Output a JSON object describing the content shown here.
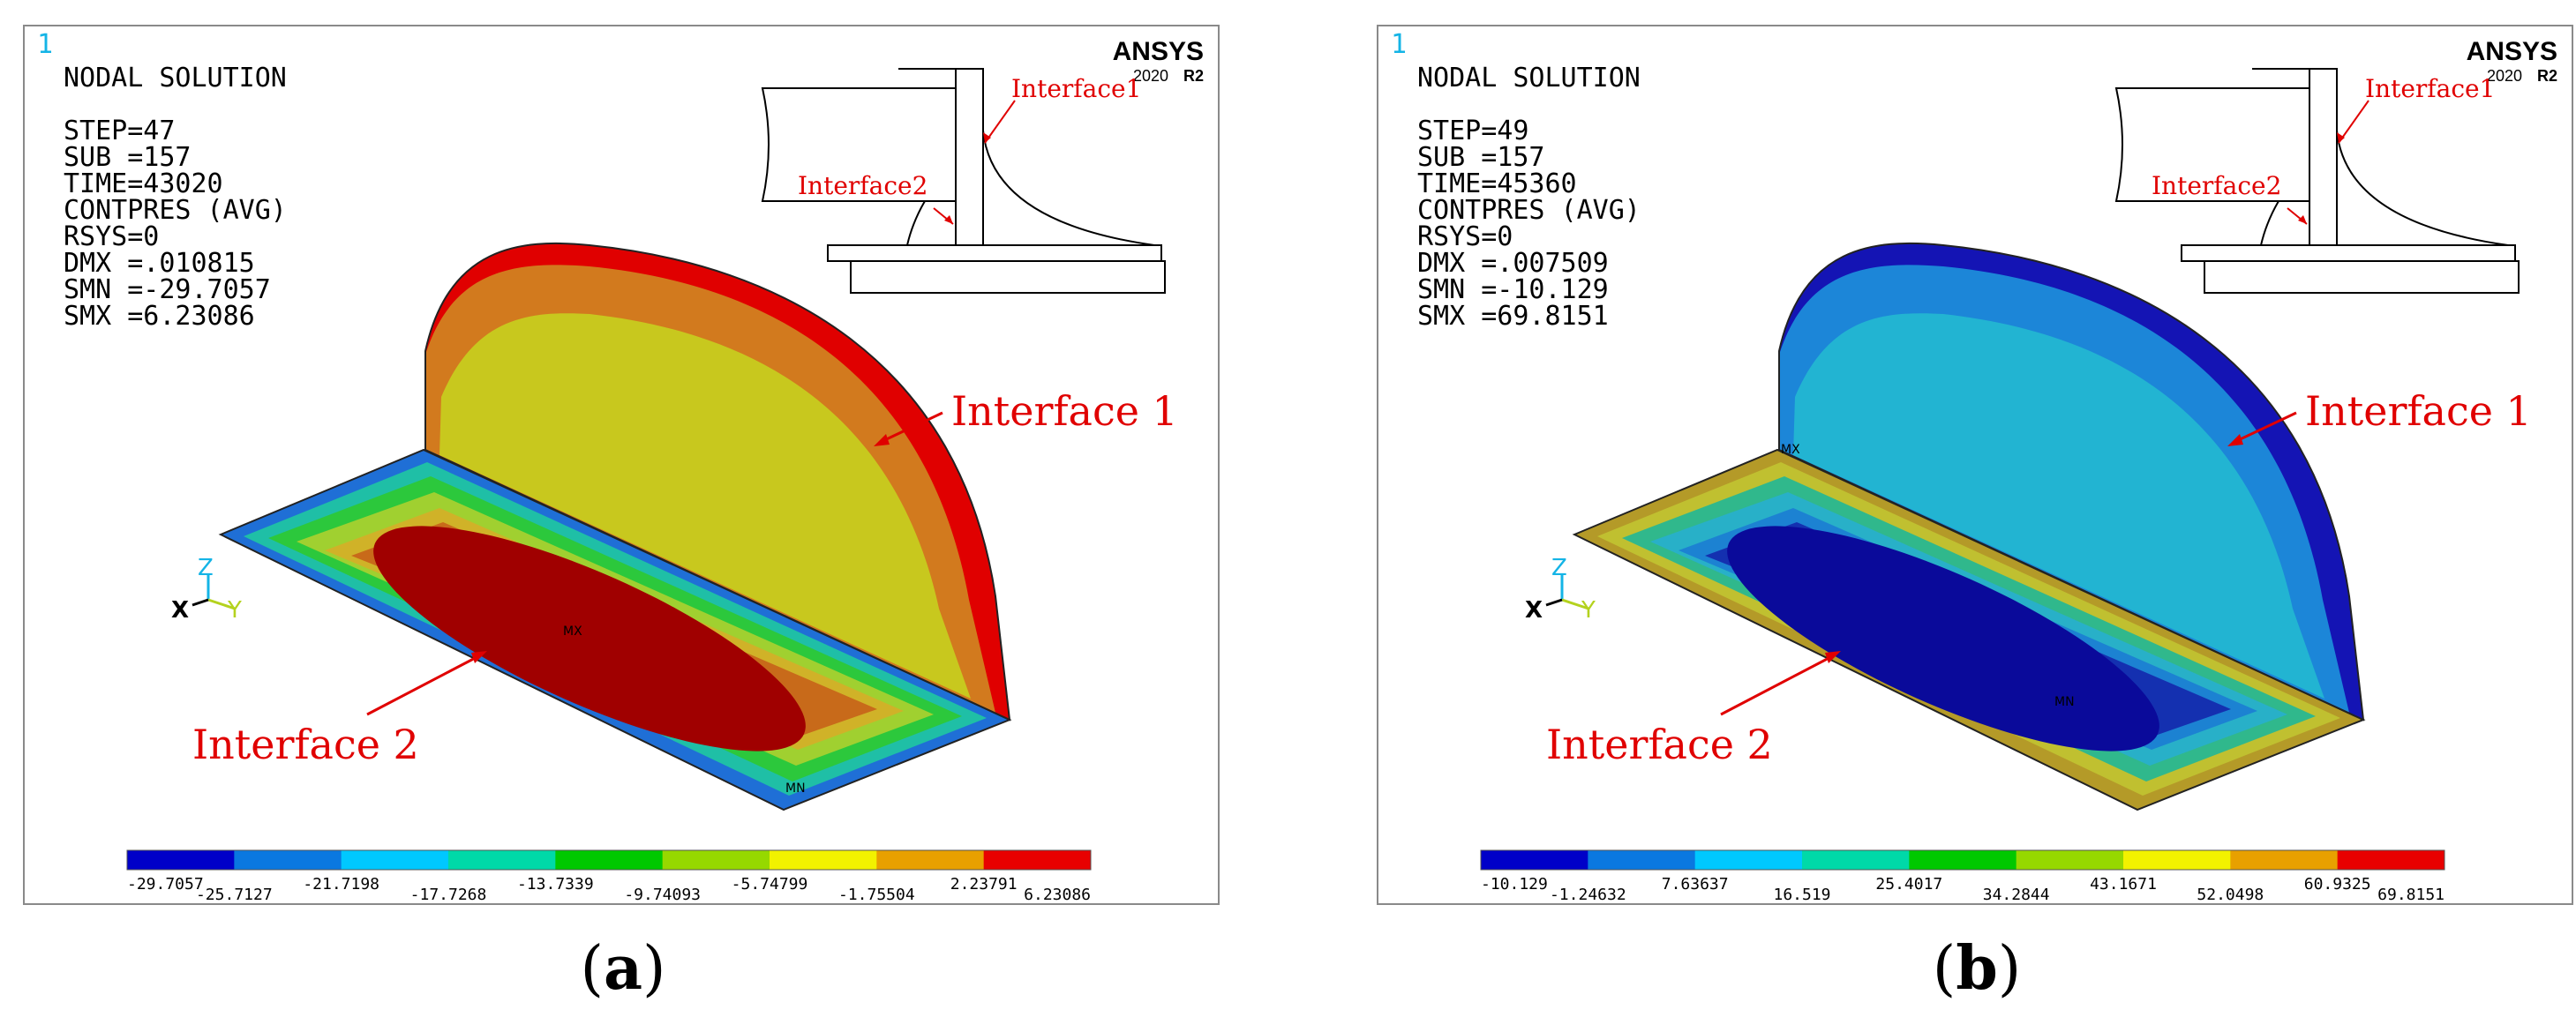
{
  "panels": [
    {
      "id": "a",
      "window_number": "1",
      "brand": "ANSYS",
      "version": "2020",
      "release": "R2",
      "header": "NODAL SOLUTION",
      "info": [
        "STEP=47",
        "SUB =157",
        "TIME=43020",
        "CONTPRES (AVG)",
        "RSYS=0",
        "DMX =.010815",
        "SMN =-29.7057",
        "SMX =6.23086"
      ],
      "schematic_labels": {
        "interface1": "Interface1",
        "interface2": "Interface2"
      },
      "labels": {
        "interface1": "Interface 1",
        "interface2": "Interface 2"
      },
      "axis": {
        "x": "X",
        "y": "Y",
        "z": "Z"
      },
      "markers": {
        "mn": "MN",
        "mx": "MX"
      },
      "legend_values": [
        "-29.7057",
        "-25.7127",
        "-21.7198",
        "-17.7268",
        "-13.7339",
        "-9.74093",
        "-5.74799",
        "-1.75504",
        "2.23791",
        "6.23086"
      ],
      "legend_colors": [
        "#0000c8",
        "#0a78e0",
        "#00c8ff",
        "#00d9a8",
        "#00c800",
        "#96d800",
        "#f2f200",
        "#e8a000",
        "#e80000"
      ],
      "colors": {
        "upper_outer": "#e00000",
        "upper_mid": "#d27a1e",
        "upper_inner": "#c8c81e",
        "lower_rim": "#1f6fd6",
        "lower_inner": "#a00000"
      },
      "caption": "a"
    },
    {
      "id": "b",
      "window_number": "1",
      "brand": "ANSYS",
      "version": "2020",
      "release": "R2",
      "header": "NODAL SOLUTION",
      "info": [
        "STEP=49",
        "SUB =157",
        "TIME=45360",
        "CONTPRES (AVG)",
        "RSYS=0",
        "DMX =.007509",
        "SMN =-10.129",
        "SMX =69.8151"
      ],
      "schematic_labels": {
        "interface1": "Interface1",
        "interface2": "Interface2"
      },
      "labels": {
        "interface1": "Interface 1",
        "interface2": "Interface 2"
      },
      "axis": {
        "x": "X",
        "y": "Y",
        "z": "Z"
      },
      "markers": {
        "mn": "MN",
        "mx": "MX"
      },
      "legend_values": [
        "-10.129",
        "-1.24632",
        "7.63637",
        "16.519",
        "25.4017",
        "34.2844",
        "43.1671",
        "52.0498",
        "60.9325",
        "69.8151"
      ],
      "legend_colors": [
        "#0000c8",
        "#0a78e0",
        "#00c8ff",
        "#00d9a8",
        "#00c800",
        "#96d800",
        "#f2f200",
        "#e8a000",
        "#e80000"
      ],
      "colors": {
        "upper_outer": "#1414b4",
        "upper_mid": "#1c86d8",
        "upper_inner": "#22b4d2",
        "lower_rim": "#b49a28",
        "lower_inner": "#0a0a9a"
      },
      "caption": "b"
    }
  ]
}
